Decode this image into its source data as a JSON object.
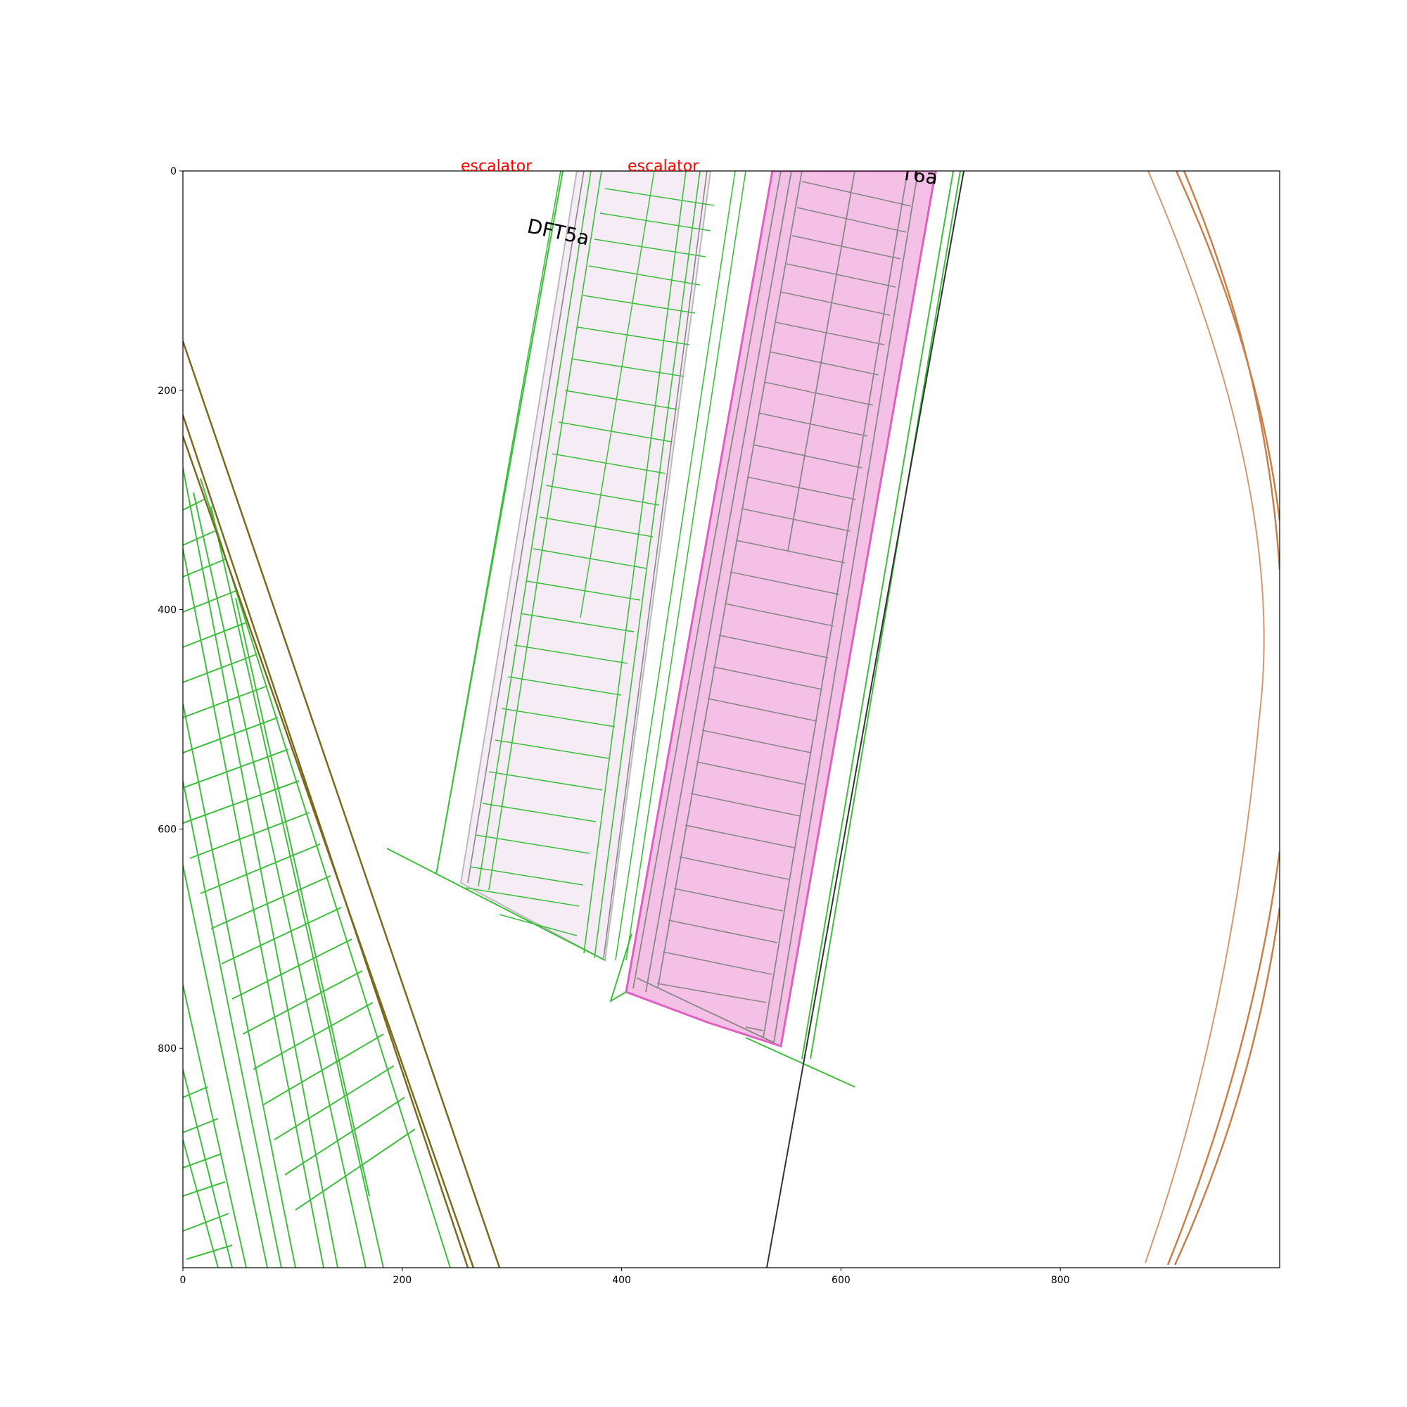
{
  "axes": {
    "xlim": [
      0,
      1000
    ],
    "ylim": [
      1000,
      0
    ],
    "x_ticks": [
      0,
      200,
      400,
      600,
      800
    ],
    "y_ticks": [
      0,
      200,
      400,
      600,
      800
    ]
  },
  "labels": {
    "escalator_left": "escalator",
    "escalator_right": "escalator",
    "room_left": "DFT5a",
    "room_right_partial": "T6a"
  },
  "colors": {
    "green": "#3dbf3d",
    "olive": "#7a6a1e",
    "pink_fill": "#f5c0e6",
    "pink_stroke": "#e060c0",
    "light_fill": "#f5ecf5",
    "gray_line": "#888888",
    "brown": "#c8804a",
    "dark_line": "#333333",
    "label_red": "#ff0000"
  }
}
